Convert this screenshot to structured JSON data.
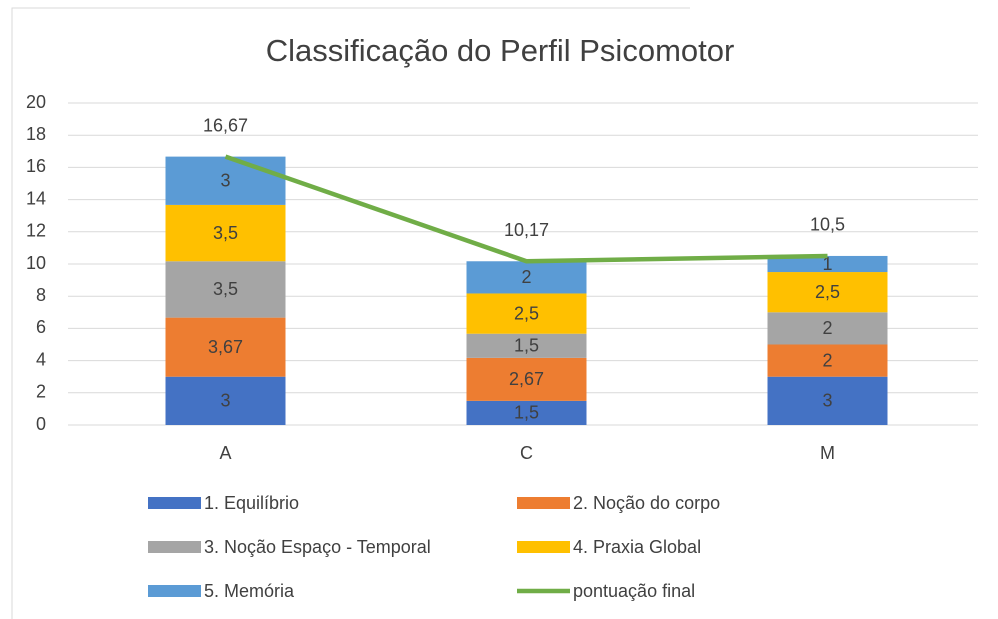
{
  "chart_data": {
    "type": "bar",
    "stacked": true,
    "title": "Classificação do Perfil Psicomotor",
    "categories": [
      "A",
      "C",
      "M"
    ],
    "series": [
      {
        "name": "1. Equilíbrio",
        "color": "#4472c4",
        "values": [
          3,
          1.5,
          3
        ],
        "value_labels": [
          "3",
          "1,5",
          "3"
        ]
      },
      {
        "name": "2. Noção do corpo",
        "color": "#ed7d31",
        "values": [
          3.67,
          2.67,
          2
        ],
        "value_labels": [
          "3,67",
          "2,67",
          "2"
        ]
      },
      {
        "name": "3. Noção Espaço - Temporal",
        "color": "#a5a5a5",
        "values": [
          3.5,
          1.5,
          2
        ],
        "value_labels": [
          "3,5",
          "1,5",
          "2"
        ]
      },
      {
        "name": "4. Praxia Global",
        "color": "#ffc000",
        "values": [
          3.5,
          2.5,
          2.5
        ],
        "value_labels": [
          "3,5",
          "2,5",
          "2,5"
        ]
      },
      {
        "name": "5. Memória",
        "color": "#5b9bd5",
        "values": [
          3,
          2,
          1
        ],
        "value_labels": [
          "3",
          "2",
          "1"
        ]
      },
      {
        "name": "pontuação final",
        "type": "line",
        "color": "#70ad47",
        "values": [
          16.67,
          10.17,
          10.5
        ],
        "value_labels": [
          "16,67",
          "10,17",
          "10,5"
        ]
      }
    ],
    "ylim": [
      0,
      20
    ],
    "yticks": [
      0,
      2,
      4,
      6,
      8,
      10,
      12,
      14,
      16,
      18,
      20
    ],
    "grid": true,
    "legend": "bottom"
  }
}
